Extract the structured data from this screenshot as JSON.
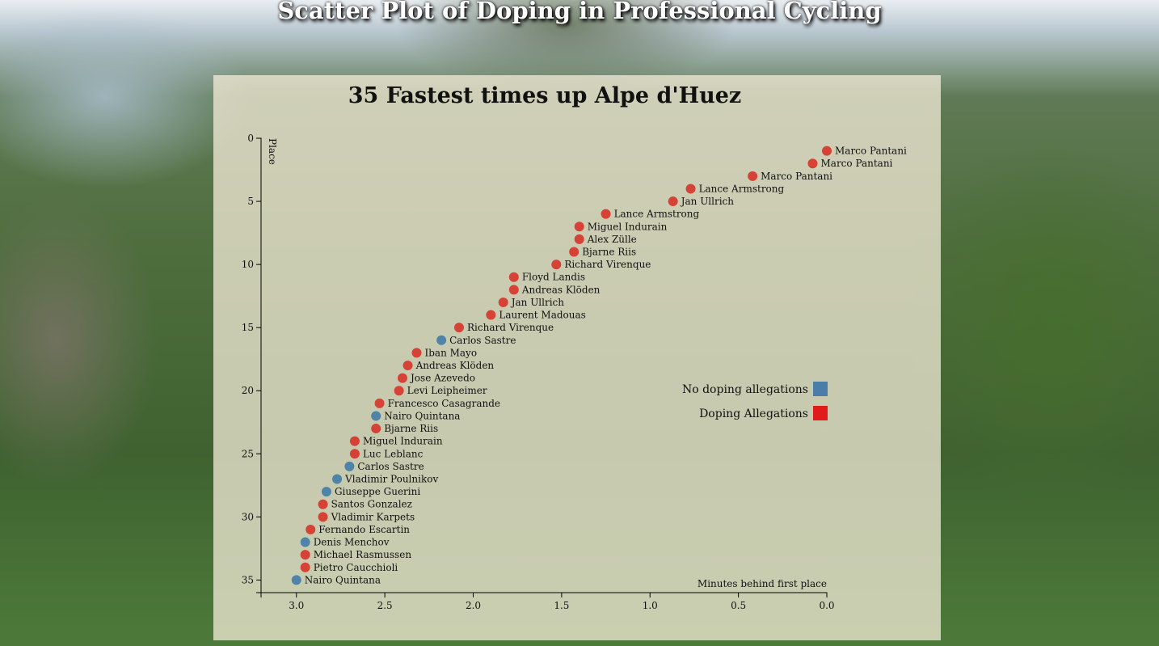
{
  "page_title": "Scatter Plot of Doping in Professional Cycling",
  "chart_data": {
    "type": "scatter",
    "title": "35 Fastest times up Alpe d'Huez",
    "xlabel": "Minutes behind first place",
    "ylabel": "Place",
    "xlim": [
      3.2,
      0
    ],
    "ylim": [
      0,
      36
    ],
    "x_ticks": [
      "3.0",
      "2.5",
      "2.0",
      "1.5",
      "1.0",
      "0.5",
      "0.0"
    ],
    "y_ticks": [
      "0",
      "5",
      "10",
      "15",
      "20",
      "25",
      "30",
      "35"
    ],
    "legend": {
      "placement": "right",
      "items": [
        {
          "label": "No doping allegations",
          "color": "#4a7ea8"
        },
        {
          "label": "Doping Allegations",
          "color": "#e11a1a"
        }
      ]
    },
    "colors": {
      "doping": "#d63a2f",
      "clean": "#4a7ea8"
    },
    "points": [
      {
        "place": 1,
        "minutes": 0.0,
        "name": "Marco Pantani",
        "doping": true
      },
      {
        "place": 2,
        "minutes": 0.08,
        "name": "Marco Pantani",
        "doping": true
      },
      {
        "place": 3,
        "minutes": 0.42,
        "name": "Marco Pantani",
        "doping": true
      },
      {
        "place": 4,
        "minutes": 0.77,
        "name": "Lance Armstrong",
        "doping": true
      },
      {
        "place": 5,
        "minutes": 0.87,
        "name": "Jan Ullrich",
        "doping": true
      },
      {
        "place": 6,
        "minutes": 1.25,
        "name": "Lance Armstrong",
        "doping": true
      },
      {
        "place": 7,
        "minutes": 1.4,
        "name": "Miguel Indurain",
        "doping": true
      },
      {
        "place": 8,
        "minutes": 1.4,
        "name": "Alex Zülle",
        "doping": true
      },
      {
        "place": 9,
        "minutes": 1.43,
        "name": "Bjarne Riis",
        "doping": true
      },
      {
        "place": 10,
        "minutes": 1.53,
        "name": "Richard Virenque",
        "doping": true
      },
      {
        "place": 11,
        "minutes": 1.77,
        "name": "Floyd Landis",
        "doping": true
      },
      {
        "place": 12,
        "minutes": 1.77,
        "name": "Andreas Klöden",
        "doping": true
      },
      {
        "place": 13,
        "minutes": 1.83,
        "name": "Jan Ullrich",
        "doping": true
      },
      {
        "place": 14,
        "minutes": 1.9,
        "name": "Laurent Madouas",
        "doping": true
      },
      {
        "place": 15,
        "minutes": 2.08,
        "name": "Richard Virenque",
        "doping": true
      },
      {
        "place": 16,
        "minutes": 2.18,
        "name": "Carlos Sastre",
        "doping": false
      },
      {
        "place": 17,
        "minutes": 2.32,
        "name": "Iban Mayo",
        "doping": true
      },
      {
        "place": 18,
        "minutes": 2.37,
        "name": "Andreas Klöden",
        "doping": true
      },
      {
        "place": 19,
        "minutes": 2.4,
        "name": "Jose Azevedo",
        "doping": true
      },
      {
        "place": 20,
        "minutes": 2.42,
        "name": "Levi Leipheimer",
        "doping": true
      },
      {
        "place": 21,
        "minutes": 2.53,
        "name": "Francesco Casagrande",
        "doping": true
      },
      {
        "place": 22,
        "minutes": 2.55,
        "name": "Nairo Quintana",
        "doping": false
      },
      {
        "place": 23,
        "minutes": 2.55,
        "name": "Bjarne Riis",
        "doping": true
      },
      {
        "place": 24,
        "minutes": 2.67,
        "name": "Miguel Indurain",
        "doping": true
      },
      {
        "place": 25,
        "minutes": 2.67,
        "name": "Luc Leblanc",
        "doping": true
      },
      {
        "place": 26,
        "minutes": 2.7,
        "name": "Carlos Sastre",
        "doping": false
      },
      {
        "place": 27,
        "minutes": 2.77,
        "name": "Vladimir Poulnikov",
        "doping": false
      },
      {
        "place": 28,
        "minutes": 2.83,
        "name": "Giuseppe Guerini",
        "doping": false
      },
      {
        "place": 29,
        "minutes": 2.85,
        "name": "Santos Gonzalez",
        "doping": true
      },
      {
        "place": 30,
        "minutes": 2.85,
        "name": "Vladimir Karpets",
        "doping": true
      },
      {
        "place": 31,
        "minutes": 2.92,
        "name": "Fernando Escartin",
        "doping": true
      },
      {
        "place": 32,
        "minutes": 2.95,
        "name": "Denis Menchov",
        "doping": false
      },
      {
        "place": 33,
        "minutes": 2.95,
        "name": "Michael Rasmussen",
        "doping": true
      },
      {
        "place": 34,
        "minutes": 2.95,
        "name": "Pietro Caucchioli",
        "doping": true
      },
      {
        "place": 35,
        "minutes": 3.0,
        "name": "Nairo Quintana",
        "doping": false
      }
    ]
  }
}
